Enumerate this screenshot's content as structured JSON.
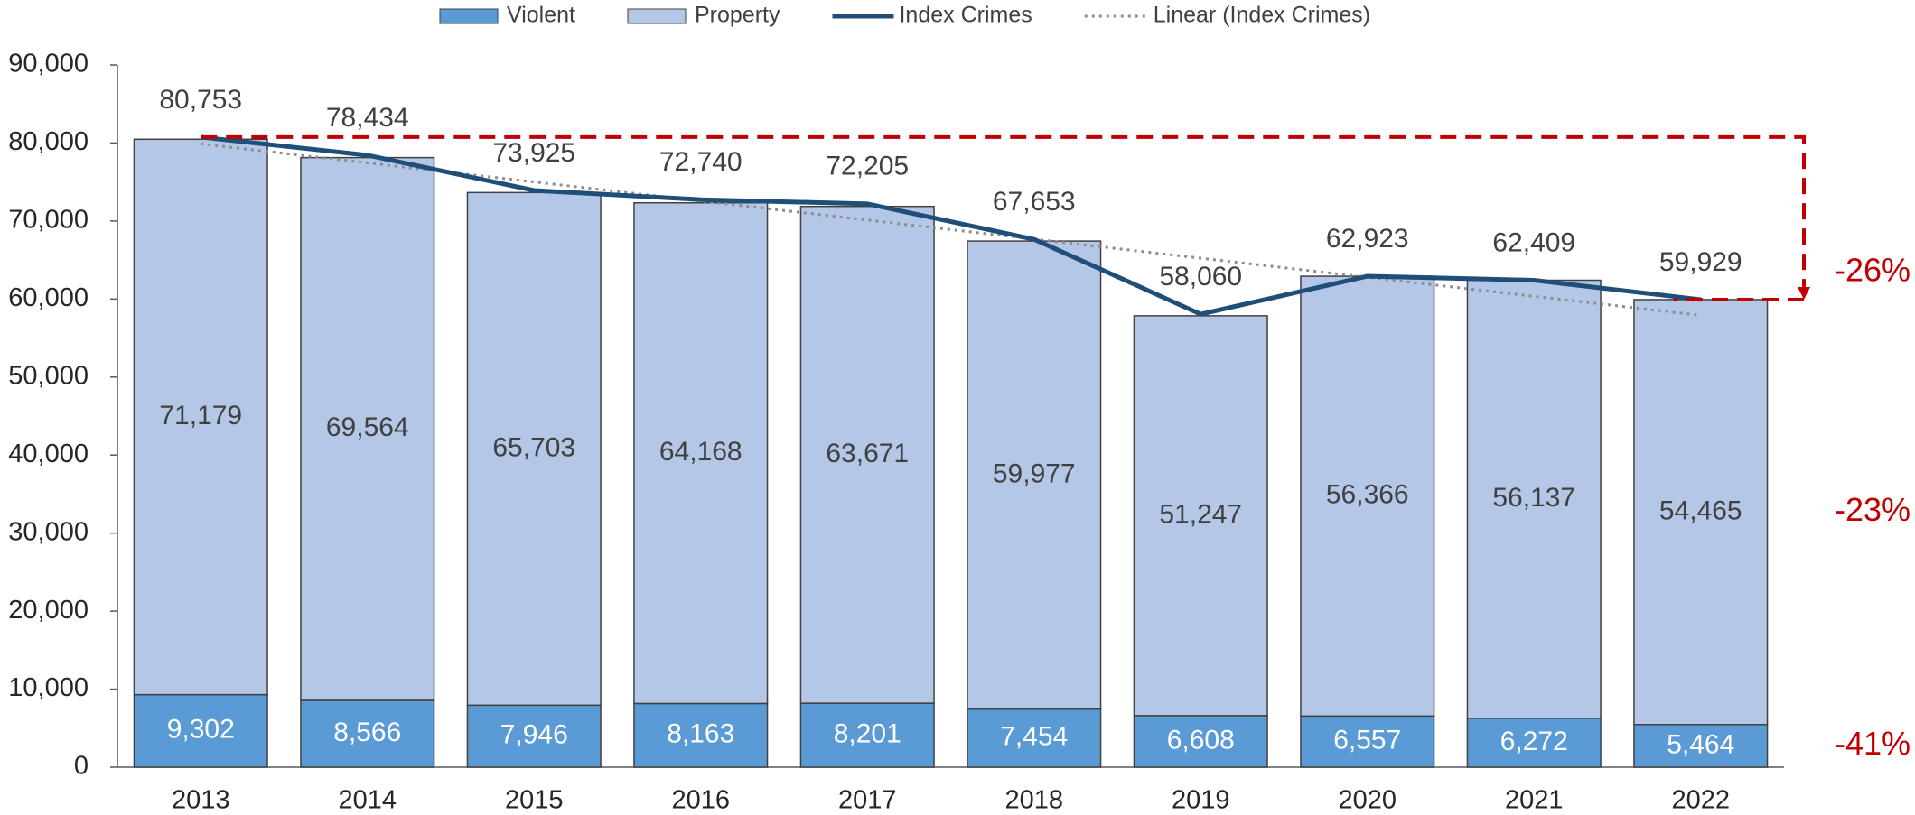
{
  "chart_data": {
    "type": "stacked_bar_line",
    "categories": [
      "2013",
      "2014",
      "2015",
      "2016",
      "2017",
      "2018",
      "2019",
      "2020",
      "2021",
      "2022"
    ],
    "series": [
      {
        "name": "Violent",
        "color": "#5b9bd5",
        "kind": "bar",
        "values": [
          9302,
          8566,
          7946,
          8163,
          8201,
          7454,
          6608,
          6557,
          6272,
          5464
        ],
        "value_labels": [
          "9,302",
          "8,566",
          "7,946",
          "8,163",
          "8,201",
          "7,454",
          "6,608",
          "6,557",
          "6,272",
          "5,464"
        ]
      },
      {
        "name": "Property",
        "color": "#b4c7e7",
        "kind": "bar",
        "values": [
          71179,
          69564,
          65703,
          64168,
          63671,
          59977,
          51247,
          56366,
          56137,
          54465
        ],
        "value_labels": [
          "71,179",
          "69,564",
          "65,703",
          "64,168",
          "63,671",
          "59,977",
          "51,247",
          "56,366",
          "56,137",
          "54,465"
        ]
      },
      {
        "name": "Index Crimes",
        "color": "#1f4e79",
        "kind": "line",
        "values": [
          80753,
          78434,
          73925,
          72740,
          72205,
          67653,
          58060,
          62923,
          62409,
          59929
        ],
        "value_labels": [
          "80,753",
          "78,434",
          "73,925",
          "72,740",
          "72,205",
          "67,653",
          "58,060",
          "62,923",
          "62,409",
          "59,929"
        ]
      }
    ],
    "trendline": {
      "name": "Linear (Index Crimes)",
      "color": "#8c8c8c"
    },
    "ylim": [
      0,
      90000
    ],
    "yticks": [
      0,
      {
        "value": 10000,
        "label": "10,000"
      },
      {
        "value": 20000,
        "label": "20,000"
      },
      {
        "value": 30000,
        "label": "30,000"
      },
      {
        "value": 40000,
        "label": "40,000"
      },
      {
        "value": 50000,
        "label": "50,000"
      },
      {
        "value": 60000,
        "label": "60,000"
      },
      {
        "value": 70000,
        "label": "70,000"
      },
      {
        "value": 80000,
        "label": "80,000"
      },
      {
        "value": 90000,
        "label": "90,000"
      }
    ],
    "annotations": [
      "-26%",
      "-23%",
      "-41%"
    ],
    "annotation_color": "#c00000",
    "legend": "top"
  }
}
